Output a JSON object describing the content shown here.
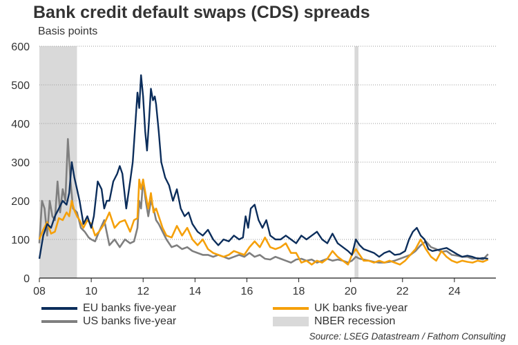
{
  "title": "Bank credit default swaps (CDS) spreads",
  "subtitle": "Basis points",
  "source": "Source: LSEG Datastream / Fathom Consulting",
  "legend": {
    "eu": "EU banks five-year",
    "uk": "UK banks five-year",
    "us": "US banks five-year",
    "nber": "NBER recession"
  },
  "colors": {
    "eu": "#0b2d5b",
    "uk": "#f5a00a",
    "us": "#7f7f7f",
    "nber": "#d9d9d9",
    "grid": "#9a9a9a",
    "axis": "#1a1a1a"
  },
  "chart_data": {
    "type": "line",
    "title": "Bank credit default swaps (CDS) spreads",
    "ylabel": "Basis points",
    "ylim": [
      0,
      600
    ],
    "yticks": [
      0,
      100,
      200,
      300,
      400,
      500,
      600
    ],
    "xlim": [
      2008,
      2025.6
    ],
    "xticks": [
      2008,
      2010,
      2012,
      2014,
      2016,
      2018,
      2020,
      2022,
      2024
    ],
    "xtick_labels": [
      "08",
      "10",
      "12",
      "14",
      "16",
      "18",
      "20",
      "22",
      "24"
    ],
    "grid": "horizontal dotted",
    "recessions": [
      [
        2008.0,
        2009.45
      ],
      [
        2020.15,
        2020.3
      ]
    ],
    "series": [
      {
        "name": "EU banks five-year",
        "key": "eu",
        "x": [
          2008.0,
          2008.15,
          2008.3,
          2008.45,
          2008.6,
          2008.75,
          2008.9,
          2009.05,
          2009.15,
          2009.25,
          2009.35,
          2009.45,
          2009.55,
          2009.7,
          2009.85,
          2010.0,
          2010.1,
          2010.25,
          2010.4,
          2010.5,
          2010.6,
          2010.7,
          2010.85,
          2011.0,
          2011.1,
          2011.2,
          2011.35,
          2011.5,
          2011.6,
          2011.7,
          2011.78,
          2011.85,
          2011.92,
          2012.0,
          2012.08,
          2012.15,
          2012.22,
          2012.3,
          2012.38,
          2012.45,
          2012.5,
          2012.6,
          2012.7,
          2012.85,
          2013.0,
          2013.15,
          2013.3,
          2013.45,
          2013.6,
          2013.75,
          2013.9,
          2014.1,
          2014.3,
          2014.5,
          2014.7,
          2014.9,
          2015.1,
          2015.3,
          2015.5,
          2015.7,
          2015.85,
          2015.95,
          2016.05,
          2016.15,
          2016.3,
          2016.45,
          2016.6,
          2016.75,
          2016.9,
          2017.1,
          2017.3,
          2017.5,
          2017.7,
          2017.9,
          2018.1,
          2018.3,
          2018.5,
          2018.7,
          2018.9,
          2019.1,
          2019.3,
          2019.5,
          2019.7,
          2019.9,
          2020.05,
          2020.2,
          2020.35,
          2020.5,
          2020.7,
          2020.9,
          2021.1,
          2021.3,
          2021.5,
          2021.7,
          2021.9,
          2022.1,
          2022.25,
          2022.4,
          2022.55,
          2022.7,
          2022.85,
          2023.0,
          2023.15,
          2023.3,
          2023.5,
          2023.7,
          2023.9,
          2024.1,
          2024.3,
          2024.5,
          2024.7,
          2024.9,
          2025.1,
          2025.3
        ],
        "values": [
          50,
          110,
          140,
          130,
          160,
          180,
          200,
          190,
          220,
          300,
          260,
          230,
          200,
          140,
          160,
          130,
          160,
          250,
          230,
          180,
          200,
          200,
          250,
          270,
          290,
          270,
          180,
          250,
          300,
          400,
          480,
          440,
          525,
          470,
          380,
          330,
          400,
          490,
          460,
          470,
          450,
          380,
          300,
          260,
          240,
          200,
          230,
          180,
          160,
          170,
          140,
          120,
          110,
          125,
          100,
          85,
          100,
          95,
          110,
          100,
          105,
          160,
          130,
          180,
          190,
          150,
          130,
          150,
          110,
          100,
          100,
          110,
          100,
          90,
          110,
          100,
          110,
          120,
          100,
          90,
          115,
          90,
          80,
          70,
          60,
          100,
          85,
          75,
          70,
          65,
          55,
          65,
          70,
          60,
          62,
          70,
          100,
          120,
          130,
          110,
          100,
          75,
          70,
          72,
          75,
          78,
          70,
          62,
          55,
          58,
          55,
          50,
          52,
          50
        ]
      },
      {
        "name": "UK banks five-year",
        "key": "uk",
        "x": [
          2008.0,
          2008.15,
          2008.3,
          2008.45,
          2008.6,
          2008.75,
          2008.9,
          2009.05,
          2009.15,
          2009.25,
          2009.35,
          2009.45,
          2009.55,
          2009.7,
          2009.85,
          2010.0,
          2010.15,
          2010.3,
          2010.5,
          2010.7,
          2010.9,
          2011.1,
          2011.3,
          2011.5,
          2011.65,
          2011.78,
          2011.85,
          2011.92,
          2012.0,
          2012.1,
          2012.2,
          2012.3,
          2012.4,
          2012.5,
          2012.6,
          2012.75,
          2012.9,
          2013.1,
          2013.3,
          2013.5,
          2013.7,
          2013.9,
          2014.1,
          2014.3,
          2014.5,
          2014.7,
          2014.9,
          2015.1,
          2015.3,
          2015.5,
          2015.7,
          2015.9,
          2016.1,
          2016.3,
          2016.5,
          2016.7,
          2016.9,
          2017.1,
          2017.3,
          2017.5,
          2017.7,
          2017.9,
          2018.1,
          2018.3,
          2018.5,
          2018.7,
          2018.9,
          2019.1,
          2019.3,
          2019.5,
          2019.7,
          2019.9,
          2020.05,
          2020.2,
          2020.35,
          2020.5,
          2020.7,
          2020.9,
          2021.1,
          2021.3,
          2021.5,
          2021.7,
          2021.9,
          2022.1,
          2022.3,
          2022.5,
          2022.7,
          2022.9,
          2023.1,
          2023.3,
          2023.5,
          2023.7,
          2023.9,
          2024.1,
          2024.3,
          2024.5,
          2024.7,
          2024.9,
          2025.1,
          2025.3
        ],
        "values": [
          100,
          125,
          145,
          115,
          120,
          155,
          150,
          170,
          160,
          200,
          175,
          160,
          150,
          130,
          150,
          140,
          110,
          120,
          140,
          170,
          130,
          145,
          150,
          120,
          150,
          155,
          255,
          230,
          255,
          215,
          180,
          220,
          170,
          180,
          160,
          130,
          110,
          105,
          135,
          110,
          130,
          100,
          85,
          100,
          75,
          65,
          60,
          55,
          60,
          70,
          65,
          60,
          80,
          95,
          80,
          105,
          80,
          75,
          80,
          90,
          65,
          65,
          40,
          45,
          35,
          45,
          40,
          50,
          70,
          55,
          45,
          35,
          60,
          75,
          60,
          45,
          45,
          40,
          45,
          40,
          45,
          40,
          35,
          45,
          60,
          75,
          100,
          75,
          55,
          45,
          70,
          55,
          45,
          40,
          45,
          42,
          40,
          45,
          42,
          48
        ]
      },
      {
        "name": "US banks five-year",
        "key": "us",
        "x": [
          2008.0,
          2008.1,
          2008.2,
          2008.3,
          2008.4,
          2008.5,
          2008.6,
          2008.7,
          2008.8,
          2008.9,
          2009.0,
          2009.1,
          2009.2,
          2009.3,
          2009.45,
          2009.6,
          2009.75,
          2009.9,
          2010.0,
          2010.15,
          2010.3,
          2010.5,
          2010.7,
          2010.9,
          2011.1,
          2011.3,
          2011.5,
          2011.65,
          2011.78,
          2011.85,
          2011.92,
          2012.0,
          2012.1,
          2012.2,
          2012.3,
          2012.4,
          2012.5,
          2012.6,
          2012.75,
          2012.9,
          2013.1,
          2013.3,
          2013.5,
          2013.7,
          2013.9,
          2014.1,
          2014.3,
          2014.5,
          2014.7,
          2014.9,
          2015.1,
          2015.3,
          2015.5,
          2015.7,
          2015.9,
          2016.1,
          2016.3,
          2016.5,
          2016.7,
          2016.9,
          2017.1,
          2017.3,
          2017.5,
          2017.7,
          2017.9,
          2018.1,
          2018.3,
          2018.5,
          2018.7,
          2018.9,
          2019.1,
          2019.3,
          2019.5,
          2019.7,
          2019.9,
          2020.05,
          2020.2,
          2020.35,
          2020.5,
          2020.7,
          2020.9,
          2021.1,
          2021.3,
          2021.5,
          2021.7,
          2021.9,
          2022.1,
          2022.3,
          2022.5,
          2022.7,
          2022.9,
          2023.1,
          2023.3,
          2023.5,
          2023.7,
          2023.9,
          2024.1,
          2024.3,
          2024.5,
          2024.7,
          2024.9,
          2025.1,
          2025.3
        ],
        "values": [
          90,
          200,
          180,
          110,
          200,
          160,
          150,
          250,
          170,
          230,
          200,
          360,
          250,
          180,
          170,
          130,
          120,
          105,
          100,
          95,
          120,
          150,
          85,
          100,
          80,
          100,
          90,
          95,
          130,
          200,
          180,
          255,
          200,
          160,
          200,
          180,
          150,
          140,
          120,
          100,
          80,
          85,
          75,
          80,
          70,
          65,
          60,
          60,
          55,
          60,
          55,
          50,
          55,
          60,
          55,
          65,
          55,
          60,
          50,
          48,
          55,
          50,
          45,
          40,
          48,
          50,
          45,
          48,
          40,
          45,
          50,
          45,
          48,
          45,
          40,
          45,
          55,
          50,
          48,
          45,
          42,
          40,
          40,
          42,
          45,
          50,
          55,
          60,
          70,
          85,
          95,
          80,
          75,
          68,
          70,
          60,
          58,
          55,
          55,
          50,
          52,
          48,
          62
        ]
      }
    ]
  }
}
